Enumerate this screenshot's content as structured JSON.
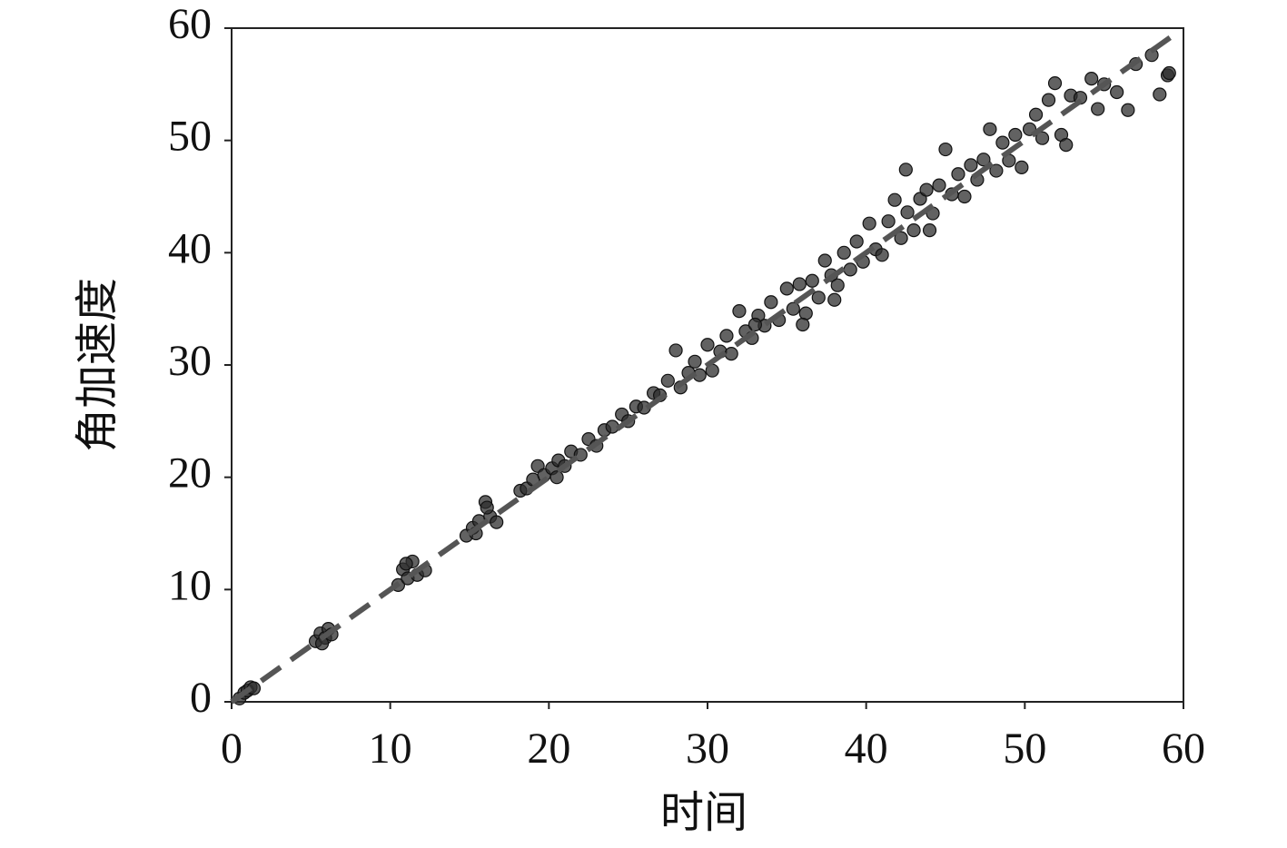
{
  "chart_data": {
    "type": "scatter",
    "xlabel": "时间",
    "ylabel": "角加速度",
    "xlim": [
      0,
      60
    ],
    "ylim": [
      0,
      60
    ],
    "xticks": [
      0,
      10,
      20,
      30,
      40,
      50,
      60
    ],
    "yticks": [
      0,
      10,
      20,
      30,
      40,
      50,
      60
    ],
    "series": [
      {
        "color": "#2e2e2e",
        "x": [
          0.5,
          0.8,
          1,
          1.2,
          1.4,
          5.3,
          5.6,
          5.9,
          6.1,
          6.3,
          5.7,
          10.5,
          10.8,
          11.1,
          11.4,
          11.7,
          12.2,
          11.0,
          14.8,
          15.2,
          15.6,
          16.0,
          16.3,
          16.7,
          15.4,
          16.1,
          18.2,
          18.6,
          19.0,
          19.3,
          19.7,
          20.2,
          20.6,
          21.0,
          21.4,
          22.0,
          22.5,
          23.0,
          23.5,
          24.0,
          24.6,
          25.0,
          25.5,
          26.0,
          26.6,
          27.0,
          27.5,
          28.0,
          28.3,
          28.8,
          29.2,
          29.5,
          30.0,
          30.3,
          30.8,
          31.2,
          31.5,
          32.0,
          32.4,
          32.8,
          33.2,
          33.6,
          34.0,
          34.5,
          35.0,
          35.4,
          35.8,
          36.2,
          36.6,
          37.0,
          37.4,
          37.8,
          38.2,
          38.6,
          39.0,
          39.4,
          39.8,
          40.2,
          40.6,
          41.0,
          41.4,
          41.8,
          42.2,
          42.6,
          43.0,
          43.4,
          43.8,
          44.2,
          44.6,
          45.0,
          45.4,
          45.8,
          46.2,
          46.6,
          47.0,
          47.4,
          47.8,
          48.2,
          48.6,
          49.0,
          49.4,
          49.8,
          50.3,
          50.7,
          51.1,
          51.5,
          51.9,
          52.3,
          52.6,
          52.9,
          53.5,
          54.2,
          54.6,
          55.0,
          55.8,
          56.5,
          57.0,
          58.0,
          58.5,
          59.0,
          59.1,
          42.5,
          44.0,
          36.0,
          38.0,
          20.5,
          33.0
        ],
        "y": [
          0.3,
          0.8,
          1,
          1.3,
          1.2,
          5.4,
          6.1,
          5.7,
          6.5,
          6.0,
          5.2,
          10.4,
          11.8,
          11.0,
          12.5,
          11.3,
          11.7,
          12.3,
          14.8,
          15.5,
          16.1,
          17.8,
          16.5,
          16.0,
          15.0,
          17.3,
          18.8,
          19.0,
          19.8,
          21.0,
          20.2,
          20.8,
          21.5,
          21.0,
          22.3,
          22.0,
          23.4,
          22.8,
          24.2,
          24.5,
          25.6,
          25.0,
          26.3,
          26.2,
          27.5,
          27.3,
          28.6,
          31.3,
          28.0,
          29.3,
          30.3,
          29.1,
          31.8,
          29.5,
          31.2,
          32.6,
          31.0,
          34.8,
          33.0,
          32.4,
          34.4,
          33.5,
          35.6,
          34.0,
          36.8,
          35.0,
          37.2,
          34.6,
          37.5,
          36.0,
          39.3,
          38.0,
          37.1,
          40.0,
          38.5,
          41.0,
          39.2,
          42.6,
          40.3,
          39.8,
          42.8,
          44.7,
          41.3,
          43.6,
          42.0,
          44.8,
          45.6,
          43.5,
          46.0,
          49.2,
          45.2,
          47.0,
          45.0,
          47.8,
          46.5,
          48.3,
          51.0,
          47.3,
          49.8,
          48.2,
          50.5,
          47.6,
          51.0,
          52.3,
          50.2,
          53.6,
          55.1,
          50.5,
          49.6,
          54.0,
          53.8,
          55.5,
          52.8,
          55.0,
          54.3,
          52.7,
          56.8,
          57.6,
          54.1,
          55.8,
          56.0,
          47.4,
          42.0,
          33.6,
          35.8,
          20.0,
          33.6
        ]
      }
    ],
    "trendline": {
      "color": "#555555",
      "x": [
        0,
        59.5
      ],
      "y": [
        0,
        59.5
      ]
    }
  }
}
